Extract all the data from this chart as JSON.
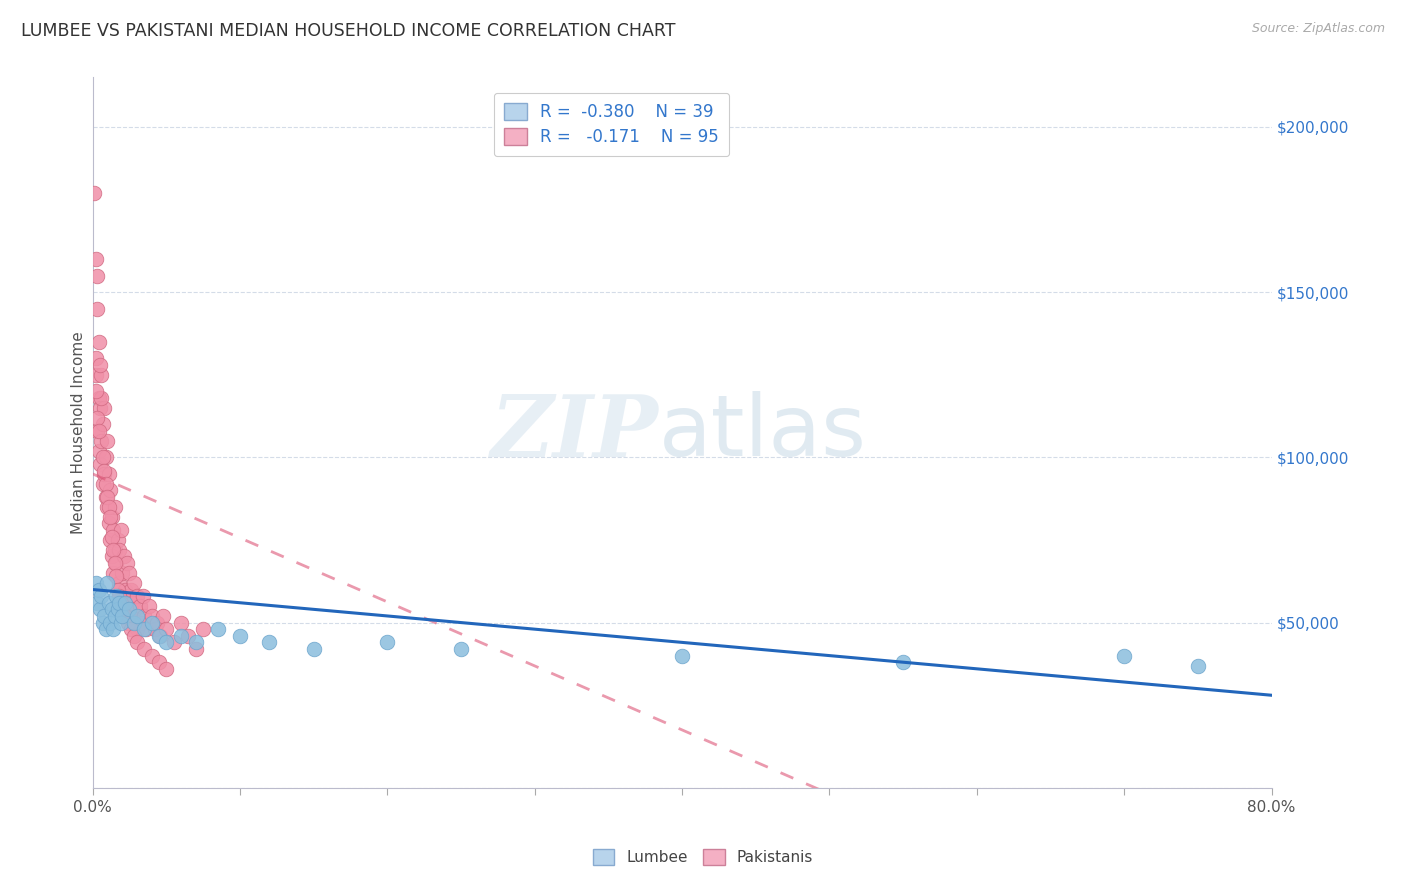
{
  "title": "LUMBEE VS PAKISTANI MEDIAN HOUSEHOLD INCOME CORRELATION CHART",
  "source": "Source: ZipAtlas.com",
  "ylabel": "Median Household Income",
  "y_ticks": [
    0,
    50000,
    100000,
    150000,
    200000
  ],
  "y_tick_labels": [
    "",
    "$50,000",
    "$100,000",
    "$150,000",
    "$200,000"
  ],
  "y_max": 215000,
  "y_min": 0,
  "x_min": 0.0,
  "x_max": 0.8,
  "lumbee_color": "#8bbedd",
  "lumbee_edge": "#6ba4cc",
  "pakistani_color": "#f090a8",
  "pakistani_edge": "#d06880",
  "trendline_lumbee_color": "#2266bb",
  "trendline_pak_color": "#dd5577",
  "background_color": "#ffffff",
  "grid_color": "#d4dce8",
  "lumbee_points": [
    [
      0.002,
      62000
    ],
    [
      0.003,
      56000
    ],
    [
      0.004,
      60000
    ],
    [
      0.005,
      54000
    ],
    [
      0.006,
      58000
    ],
    [
      0.007,
      50000
    ],
    [
      0.008,
      52000
    ],
    [
      0.009,
      48000
    ],
    [
      0.01,
      62000
    ],
    [
      0.011,
      56000
    ],
    [
      0.012,
      50000
    ],
    [
      0.013,
      54000
    ],
    [
      0.014,
      48000
    ],
    [
      0.015,
      52000
    ],
    [
      0.016,
      58000
    ],
    [
      0.017,
      54000
    ],
    [
      0.018,
      56000
    ],
    [
      0.019,
      50000
    ],
    [
      0.02,
      52000
    ],
    [
      0.022,
      56000
    ],
    [
      0.025,
      54000
    ],
    [
      0.028,
      50000
    ],
    [
      0.03,
      52000
    ],
    [
      0.035,
      48000
    ],
    [
      0.04,
      50000
    ],
    [
      0.045,
      46000
    ],
    [
      0.05,
      44000
    ],
    [
      0.06,
      46000
    ],
    [
      0.07,
      44000
    ],
    [
      0.085,
      48000
    ],
    [
      0.1,
      46000
    ],
    [
      0.12,
      44000
    ],
    [
      0.15,
      42000
    ],
    [
      0.2,
      44000
    ],
    [
      0.25,
      42000
    ],
    [
      0.4,
      40000
    ],
    [
      0.55,
      38000
    ],
    [
      0.7,
      40000
    ],
    [
      0.75,
      37000
    ]
  ],
  "pakistani_points": [
    [
      0.001,
      180000
    ],
    [
      0.002,
      125000
    ],
    [
      0.002,
      130000
    ],
    [
      0.003,
      145000
    ],
    [
      0.003,
      108000
    ],
    [
      0.004,
      118000
    ],
    [
      0.004,
      102000
    ],
    [
      0.005,
      98000
    ],
    [
      0.005,
      115000
    ],
    [
      0.006,
      125000
    ],
    [
      0.006,
      105000
    ],
    [
      0.007,
      110000
    ],
    [
      0.007,
      92000
    ],
    [
      0.008,
      95000
    ],
    [
      0.008,
      115000
    ],
    [
      0.009,
      88000
    ],
    [
      0.009,
      100000
    ],
    [
      0.01,
      85000
    ],
    [
      0.01,
      105000
    ],
    [
      0.011,
      80000
    ],
    [
      0.011,
      95000
    ],
    [
      0.012,
      90000
    ],
    [
      0.012,
      75000
    ],
    [
      0.013,
      82000
    ],
    [
      0.013,
      70000
    ],
    [
      0.014,
      78000
    ],
    [
      0.014,
      65000
    ],
    [
      0.015,
      85000
    ],
    [
      0.015,
      72000
    ],
    [
      0.016,
      68000
    ],
    [
      0.017,
      75000
    ],
    [
      0.018,
      72000
    ],
    [
      0.018,
      62000
    ],
    [
      0.019,
      78000
    ],
    [
      0.02,
      65000
    ],
    [
      0.02,
      55000
    ],
    [
      0.021,
      70000
    ],
    [
      0.022,
      60000
    ],
    [
      0.023,
      68000
    ],
    [
      0.024,
      58000
    ],
    [
      0.025,
      65000
    ],
    [
      0.025,
      52000
    ],
    [
      0.026,
      60000
    ],
    [
      0.027,
      56000
    ],
    [
      0.028,
      62000
    ],
    [
      0.029,
      54000
    ],
    [
      0.03,
      58000
    ],
    [
      0.03,
      48000
    ],
    [
      0.032,
      55000
    ],
    [
      0.033,
      50000
    ],
    [
      0.034,
      58000
    ],
    [
      0.035,
      52000
    ],
    [
      0.036,
      48000
    ],
    [
      0.038,
      55000
    ],
    [
      0.04,
      52000
    ],
    [
      0.042,
      48000
    ],
    [
      0.044,
      50000
    ],
    [
      0.046,
      46000
    ],
    [
      0.048,
      52000
    ],
    [
      0.05,
      48000
    ],
    [
      0.055,
      44000
    ],
    [
      0.06,
      50000
    ],
    [
      0.065,
      46000
    ],
    [
      0.07,
      42000
    ],
    [
      0.075,
      48000
    ],
    [
      0.002,
      160000
    ],
    [
      0.003,
      155000
    ],
    [
      0.004,
      135000
    ],
    [
      0.005,
      128000
    ],
    [
      0.006,
      118000
    ],
    [
      0.007,
      100000
    ],
    [
      0.008,
      96000
    ],
    [
      0.009,
      92000
    ],
    [
      0.01,
      88000
    ],
    [
      0.011,
      85000
    ],
    [
      0.012,
      82000
    ],
    [
      0.013,
      76000
    ],
    [
      0.014,
      72000
    ],
    [
      0.015,
      68000
    ],
    [
      0.016,
      64000
    ],
    [
      0.017,
      60000
    ],
    [
      0.018,
      58000
    ],
    [
      0.019,
      56000
    ],
    [
      0.02,
      54000
    ],
    [
      0.022,
      52000
    ],
    [
      0.024,
      50000
    ],
    [
      0.026,
      48000
    ],
    [
      0.028,
      46000
    ],
    [
      0.03,
      44000
    ],
    [
      0.035,
      42000
    ],
    [
      0.04,
      40000
    ],
    [
      0.045,
      38000
    ],
    [
      0.05,
      36000
    ],
    [
      0.002,
      120000
    ],
    [
      0.003,
      112000
    ],
    [
      0.004,
      108000
    ]
  ]
}
